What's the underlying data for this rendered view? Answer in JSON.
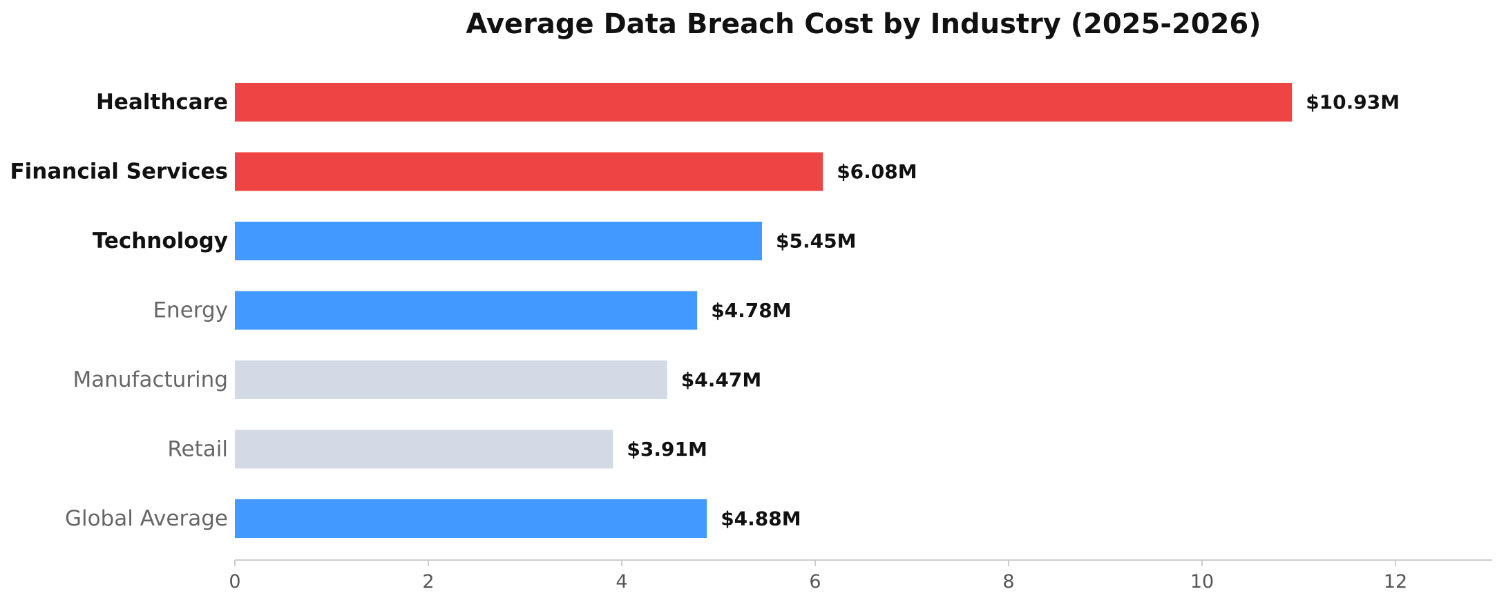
{
  "chart_data": {
    "type": "bar",
    "orientation": "horizontal",
    "title": "Average Data Breach Cost by Industry (2025-2026)",
    "xlabel": "",
    "ylabel": "",
    "xlim": [
      0,
      13
    ],
    "xticks": [
      0,
      2,
      4,
      6,
      8,
      10,
      12
    ],
    "grid": false,
    "legend": "none",
    "categories": [
      "Healthcare",
      "Financial Services",
      "Technology",
      "Energy",
      "Manufacturing",
      "Retail",
      "Global Average"
    ],
    "values": [
      10.93,
      6.08,
      5.45,
      4.78,
      4.47,
      3.91,
      4.88
    ],
    "value_labels": [
      "$10.93M",
      "$6.08M",
      "$5.45M",
      "$4.78M",
      "$4.47M",
      "$3.91M",
      "$4.88M"
    ],
    "highlighted_categories": [
      "Healthcare",
      "Financial Services",
      "Technology"
    ],
    "bar_colors": [
      "#ef4444",
      "#ef4444",
      "#4299ff",
      "#4299ff",
      "#d3dae6",
      "#d3dae6",
      "#4299ff"
    ],
    "colors": {
      "label_highlight": "#111111",
      "label_muted": "#666666",
      "axis": "#cccccc",
      "tick_text": "#555555"
    }
  }
}
